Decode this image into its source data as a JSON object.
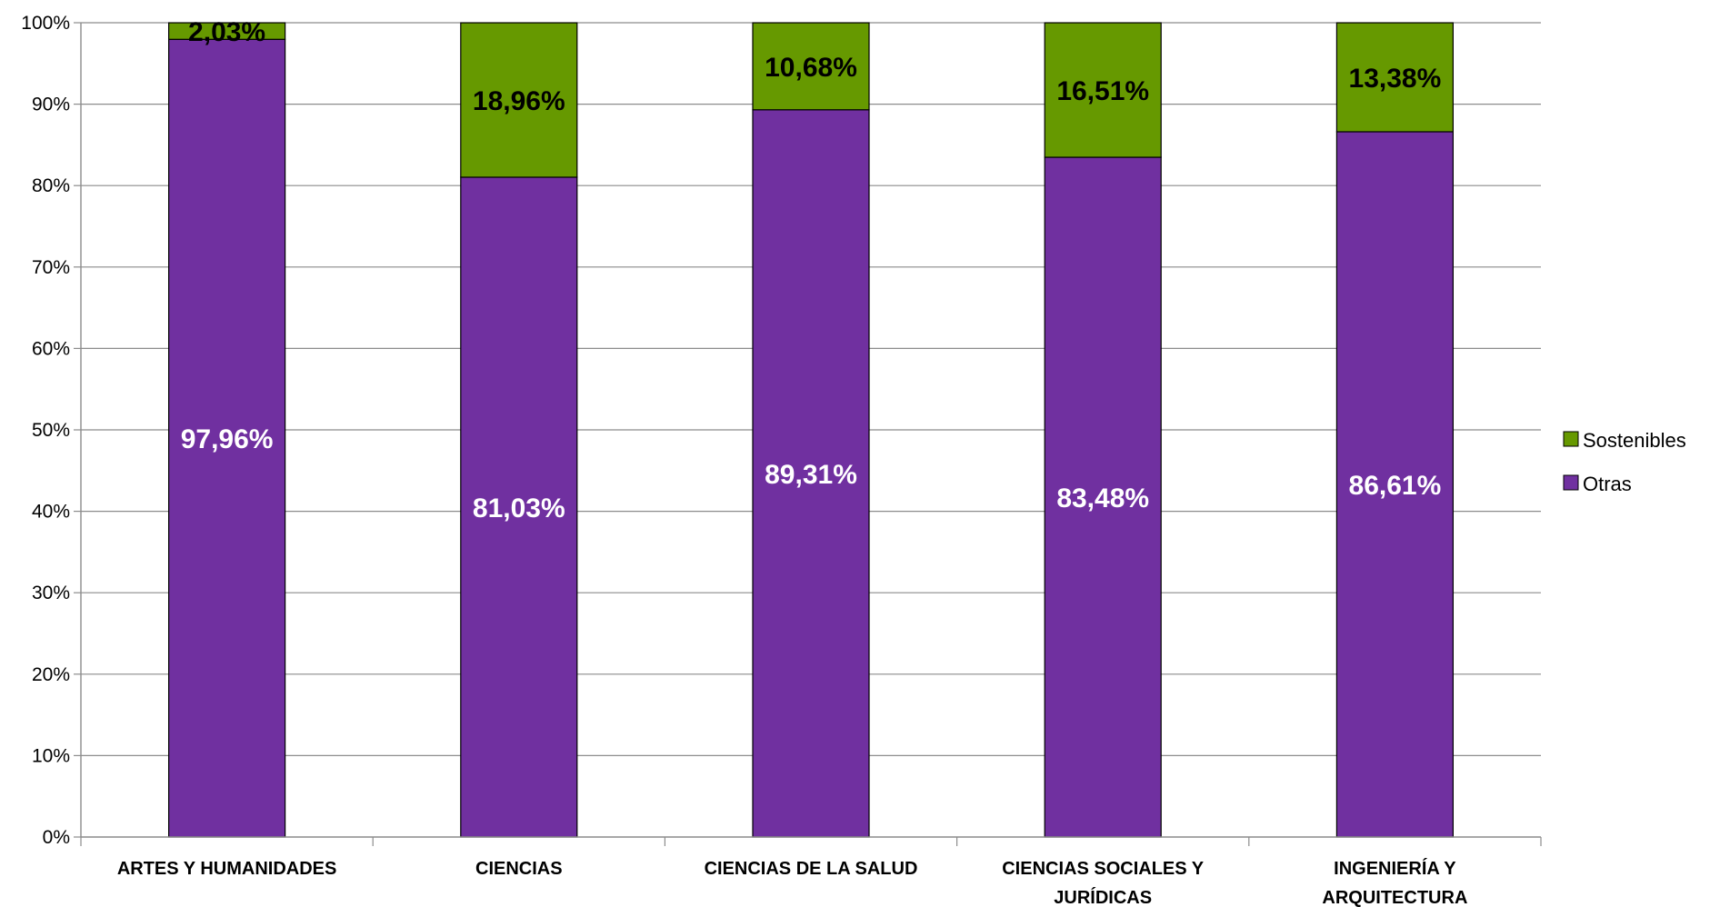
{
  "chart_data": {
    "type": "bar",
    "stacked": true,
    "categories": [
      [
        "ARTES Y HUMANIDADES"
      ],
      [
        "CIENCIAS"
      ],
      [
        "CIENCIAS DE LA SALUD"
      ],
      [
        "CIENCIAS SOCIALES Y",
        "JURÍDICAS"
      ],
      [
        "INGENIERÍA Y",
        "ARQUITECTURA"
      ]
    ],
    "series": [
      {
        "name": "Otras",
        "color": "#7030A0",
        "label_color": "#FFFFFF",
        "values": [
          97.96,
          81.03,
          89.31,
          83.48,
          86.61
        ],
        "labels": [
          "97,96%",
          "81,03%",
          "89,31%",
          "83,48%",
          "86,61%"
        ]
      },
      {
        "name": "Sostenibles",
        "color": "#669900",
        "label_color": "#000000",
        "values": [
          2.03,
          18.96,
          10.68,
          16.51,
          13.38
        ],
        "labels": [
          "2,03%",
          "18,96%",
          "10,68%",
          "16,51%",
          "13,38%"
        ]
      }
    ],
    "y_ticks": [
      "0%",
      "10%",
      "20%",
      "30%",
      "40%",
      "50%",
      "60%",
      "70%",
      "80%",
      "90%",
      "100%"
    ],
    "ylim": [
      0,
      100
    ],
    "grid": true,
    "legend_position": "right",
    "legend_order": [
      "Sostenibles",
      "Otras"
    ]
  }
}
